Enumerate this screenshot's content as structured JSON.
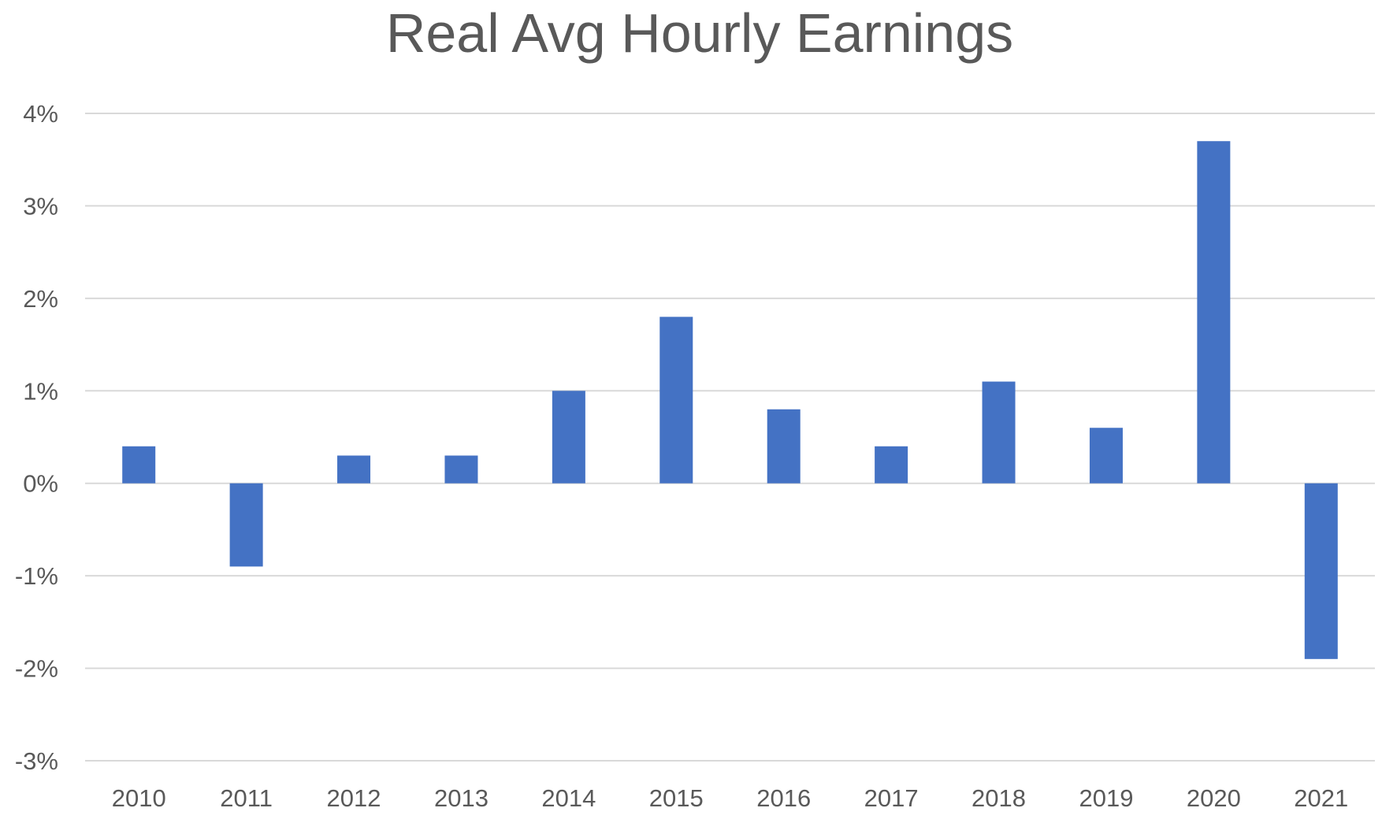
{
  "chart_data": {
    "type": "bar",
    "title": "Real Avg Hourly Earnings",
    "xlabel": "",
    "ylabel": "",
    "categories": [
      "2010",
      "2011",
      "2012",
      "2013",
      "2014",
      "2015",
      "2016",
      "2017",
      "2018",
      "2019",
      "2020",
      "2021"
    ],
    "series": [
      {
        "values": [
          0.4,
          -0.9,
          0.3,
          0.3,
          1.0,
          1.8,
          0.8,
          0.4,
          1.1,
          0.6,
          3.7,
          -1.9
        ],
        "color": "#4472c4"
      }
    ],
    "ylim": [
      -3,
      4
    ],
    "y_ticks": [
      -3,
      -2,
      -1,
      0,
      1,
      2,
      3,
      4
    ],
    "y_tick_labels": [
      "-3%",
      "-2%",
      "-1%",
      "0%",
      "1%",
      "2%",
      "3%",
      "4%"
    ],
    "grid": true,
    "legend": "none"
  }
}
